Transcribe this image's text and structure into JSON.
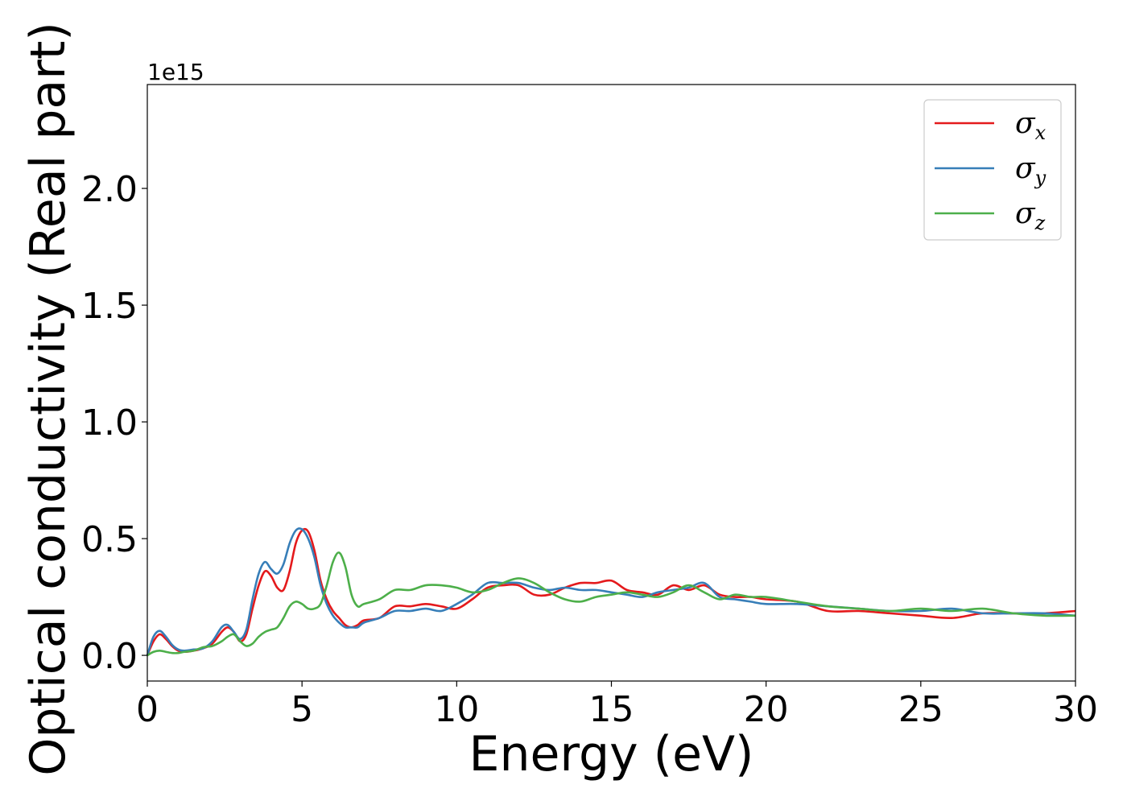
{
  "chart_data": {
    "type": "line",
    "xlabel": "Energy (eV)",
    "ylabel": "Optical conductivity (Real part)",
    "y_offset_label": "1e15",
    "xlim": [
      0,
      30
    ],
    "ylim": [
      -0.11,
      2.445
    ],
    "x_ticks": [
      0,
      5,
      10,
      15,
      20,
      25,
      30
    ],
    "x_tick_labels": [
      "0",
      "5",
      "10",
      "15",
      "20",
      "25",
      "30"
    ],
    "y_ticks": [
      0.0,
      0.5,
      1.0,
      1.5,
      2.0
    ],
    "y_tick_labels": [
      "0.0",
      "0.5",
      "1.0",
      "1.5",
      "2.0"
    ],
    "grid": false,
    "legend_position": "top-right",
    "x": [
      0,
      0.2,
      0.4,
      0.6,
      0.8,
      1.0,
      1.2,
      1.5,
      1.8,
      2.1,
      2.4,
      2.6,
      2.8,
      3.0,
      3.2,
      3.4,
      3.6,
      3.8,
      4.0,
      4.2,
      4.4,
      4.6,
      4.8,
      5.0,
      5.2,
      5.4,
      5.6,
      5.8,
      6.0,
      6.2,
      6.4,
      6.6,
      6.8,
      7.0,
      7.5,
      8.0,
      8.5,
      9.0,
      9.5,
      10.0,
      10.5,
      11.0,
      11.5,
      12.0,
      12.5,
      13.0,
      13.5,
      14.0,
      14.5,
      15.0,
      15.5,
      16.0,
      16.5,
      17.0,
      17.5,
      18.0,
      18.5,
      19.0,
      19.5,
      20.0,
      21.0,
      22.0,
      23.0,
      24.0,
      25.0,
      26.0,
      27.0,
      28.0,
      29.0,
      30.0
    ],
    "series": [
      {
        "name": "σ_x",
        "label_main": "σ",
        "label_sub": "x",
        "color": "#e41a1c",
        "values": [
          0.0,
          0.06,
          0.09,
          0.07,
          0.04,
          0.02,
          0.015,
          0.02,
          0.03,
          0.05,
          0.1,
          0.12,
          0.1,
          0.06,
          0.09,
          0.2,
          0.3,
          0.36,
          0.34,
          0.29,
          0.28,
          0.36,
          0.48,
          0.535,
          0.53,
          0.45,
          0.32,
          0.24,
          0.19,
          0.16,
          0.13,
          0.12,
          0.13,
          0.15,
          0.16,
          0.21,
          0.21,
          0.22,
          0.21,
          0.2,
          0.24,
          0.29,
          0.3,
          0.3,
          0.26,
          0.26,
          0.29,
          0.31,
          0.31,
          0.32,
          0.28,
          0.27,
          0.26,
          0.3,
          0.28,
          0.3,
          0.26,
          0.25,
          0.25,
          0.24,
          0.23,
          0.19,
          0.19,
          0.18,
          0.17,
          0.16,
          0.18,
          0.18,
          0.18,
          0.19
        ]
      },
      {
        "name": "σ_y",
        "label_main": "σ",
        "label_sub": "y",
        "color": "#377eb8",
        "values": [
          0.0,
          0.08,
          0.105,
          0.08,
          0.045,
          0.025,
          0.02,
          0.025,
          0.03,
          0.06,
          0.12,
          0.13,
          0.1,
          0.07,
          0.11,
          0.24,
          0.35,
          0.4,
          0.37,
          0.35,
          0.39,
          0.48,
          0.535,
          0.54,
          0.5,
          0.42,
          0.3,
          0.22,
          0.17,
          0.14,
          0.12,
          0.12,
          0.12,
          0.14,
          0.16,
          0.19,
          0.19,
          0.2,
          0.19,
          0.22,
          0.26,
          0.31,
          0.31,
          0.31,
          0.29,
          0.28,
          0.29,
          0.28,
          0.28,
          0.27,
          0.26,
          0.25,
          0.27,
          0.28,
          0.29,
          0.31,
          0.25,
          0.24,
          0.23,
          0.22,
          0.22,
          0.21,
          0.2,
          0.19,
          0.19,
          0.2,
          0.18,
          0.18,
          0.18,
          0.17
        ]
      },
      {
        "name": "σ_z",
        "label_main": "σ",
        "label_sub": "z",
        "color": "#4daf4a",
        "values": [
          0.0,
          0.015,
          0.02,
          0.015,
          0.01,
          0.01,
          0.015,
          0.02,
          0.035,
          0.04,
          0.06,
          0.08,
          0.09,
          0.06,
          0.04,
          0.05,
          0.08,
          0.1,
          0.11,
          0.12,
          0.16,
          0.21,
          0.23,
          0.22,
          0.2,
          0.2,
          0.22,
          0.3,
          0.4,
          0.44,
          0.38,
          0.26,
          0.21,
          0.22,
          0.24,
          0.28,
          0.28,
          0.3,
          0.3,
          0.29,
          0.27,
          0.28,
          0.31,
          0.33,
          0.31,
          0.27,
          0.24,
          0.23,
          0.25,
          0.26,
          0.27,
          0.26,
          0.25,
          0.27,
          0.3,
          0.27,
          0.24,
          0.26,
          0.25,
          0.25,
          0.23,
          0.21,
          0.2,
          0.19,
          0.2,
          0.19,
          0.2,
          0.18,
          0.17,
          0.17
        ]
      }
    ]
  }
}
